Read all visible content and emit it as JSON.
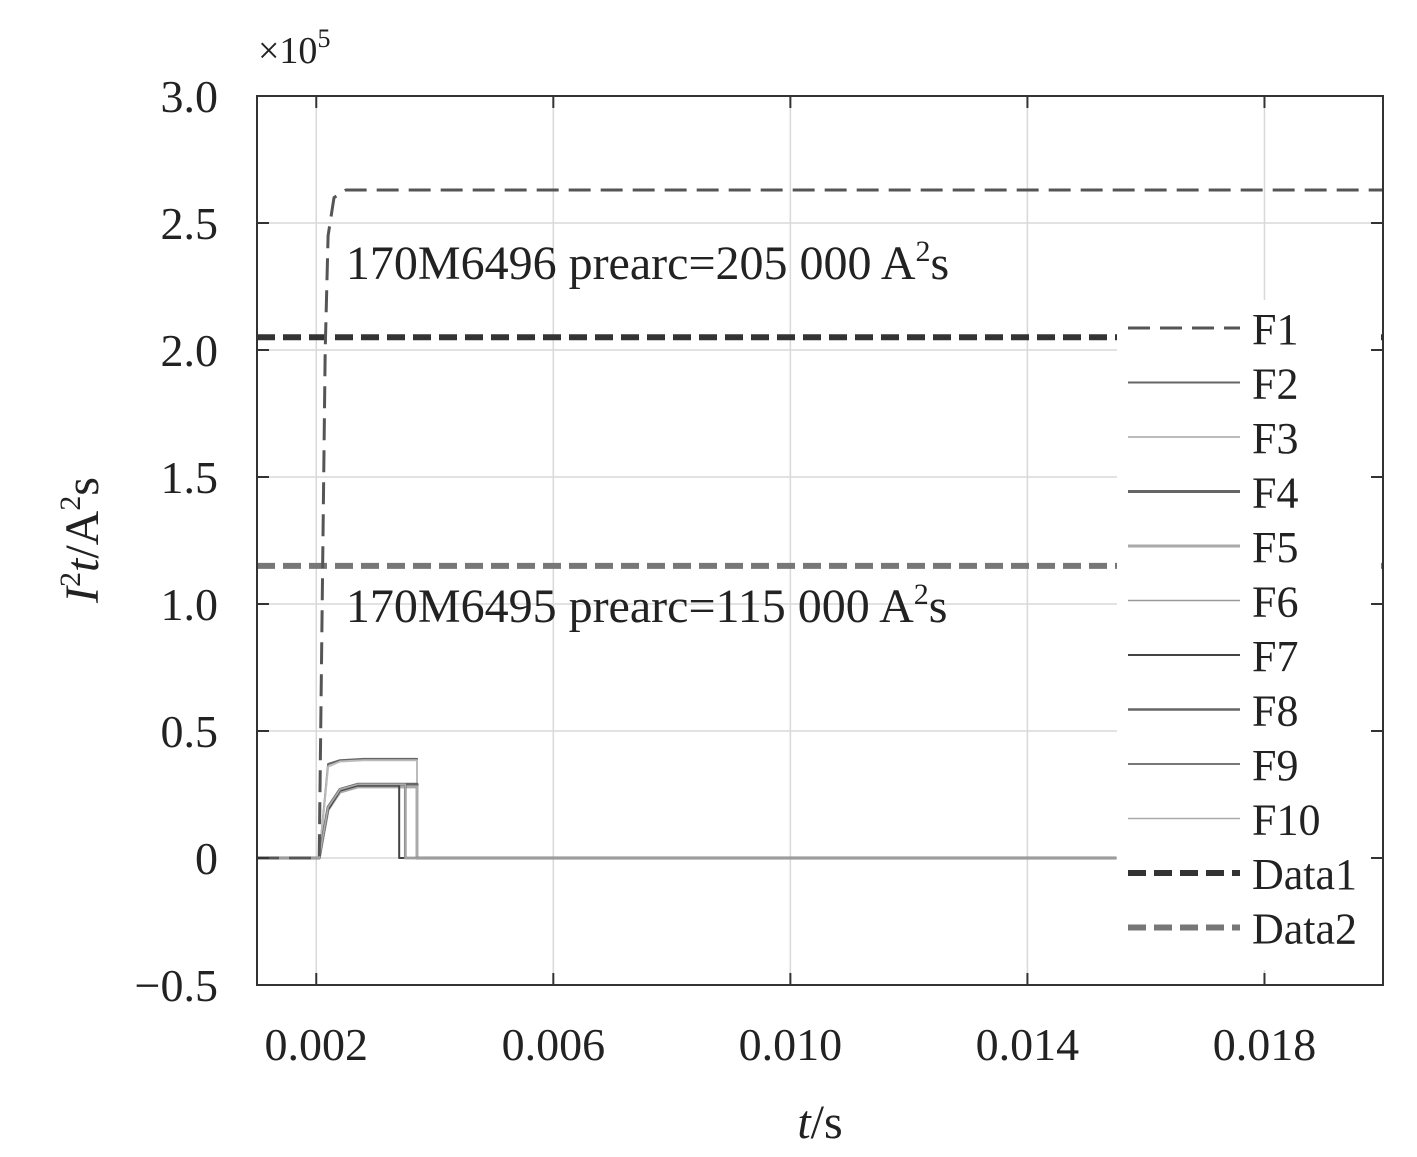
{
  "chart_data": {
    "type": "line",
    "xlabel_italic": "t",
    "xlabel_unit": "/s",
    "ylabel_base": "I",
    "ylabel_sup": "2",
    "ylabel_italic": "t",
    "ylabel_unit": "/A",
    "ylabel_unit_sup": "2",
    "ylabel_unit_tail": "s",
    "exponent_prefix": "×10",
    "exponent_power": "5",
    "xlim": [
      0.001,
      0.02
    ],
    "ylim": [
      -0.5,
      3.0
    ],
    "y_scale_factor": 100000,
    "grid": true,
    "legend_position": "right",
    "x_ticks": [
      0.002,
      0.006,
      0.01,
      0.014,
      0.018
    ],
    "x_tick_labels": [
      "0.002",
      "0.006",
      "0.010",
      "0.014",
      "0.018"
    ],
    "y_ticks": [
      -0.5,
      0,
      0.5,
      1.0,
      1.5,
      2.0,
      2.5,
      3.0
    ],
    "y_tick_labels": [
      "−0.5",
      "0",
      "0.5",
      "1.0",
      "1.5",
      "2.0",
      "2.5",
      "3.0"
    ],
    "annotations": [
      {
        "text_before": "170M6496 prearc=205 000 A",
        "sup": "2",
        "text_after": "s",
        "x": 0.0025,
        "y": 2.28
      },
      {
        "text_before": "170M6495 prearc=115 000 A",
        "sup": "2",
        "text_after": "s",
        "x": 0.0025,
        "y": 0.93
      }
    ],
    "series": [
      {
        "name": "F1",
        "color": "#555555",
        "dash": "dashed",
        "width": 3,
        "x": [
          0.001,
          0.00205,
          0.0021,
          0.00215,
          0.0022,
          0.0023,
          0.0025,
          0.02
        ],
        "y": [
          0,
          0,
          1.0,
          2.0,
          2.45,
          2.6,
          2.63,
          2.63
        ]
      },
      {
        "name": "F2",
        "color": "#666666",
        "dash": "solid",
        "width": 2,
        "x": [
          0.001,
          0.00205,
          0.0022,
          0.0024,
          0.0028,
          0.0037,
          0.0037,
          0.0155
        ],
        "y": [
          0,
          0,
          0.37,
          0.385,
          0.39,
          0.39,
          0,
          0
        ]
      },
      {
        "name": "F3",
        "color": "#bbbbbb",
        "dash": "solid",
        "width": 2,
        "x": [
          0.001,
          0.00205,
          0.0022,
          0.0024,
          0.0028,
          0.0037,
          0.0037,
          0.0155
        ],
        "y": [
          0,
          0,
          0.36,
          0.38,
          0.385,
          0.385,
          0,
          0
        ]
      },
      {
        "name": "F4",
        "color": "#666666",
        "dash": "solid",
        "width": 3,
        "x": [
          0.001,
          0.00205,
          0.0022,
          0.0024,
          0.0027,
          0.0037,
          0.0037,
          0.0155
        ],
        "y": [
          0,
          0,
          0.2,
          0.27,
          0.29,
          0.29,
          0,
          0
        ]
      },
      {
        "name": "F5",
        "color": "#aaaaaa",
        "dash": "solid",
        "width": 3,
        "x": [
          0.001,
          0.00205,
          0.0022,
          0.0024,
          0.0027,
          0.0037,
          0.0037,
          0.0155
        ],
        "y": [
          0,
          0,
          0.19,
          0.26,
          0.28,
          0.28,
          0,
          0
        ]
      },
      {
        "name": "F6",
        "color": "#999999",
        "dash": "solid",
        "width": 1.5,
        "x": [
          0.001,
          0.00205,
          0.0022,
          0.0024,
          0.0027,
          0.0034,
          0.0034,
          0.0155
        ],
        "y": [
          0,
          0,
          0.2,
          0.27,
          0.29,
          0.29,
          0,
          0
        ]
      },
      {
        "name": "F7",
        "color": "#444444",
        "dash": "solid",
        "width": 2,
        "x": [
          0.001,
          0.00205,
          0.0022,
          0.0024,
          0.0027,
          0.0034,
          0.0034,
          0.0155
        ],
        "y": [
          0,
          0,
          0.19,
          0.265,
          0.285,
          0.285,
          0,
          0
        ]
      },
      {
        "name": "F8",
        "color": "#666666",
        "dash": "solid",
        "width": 2.5,
        "x": [
          0.001,
          0.00205,
          0.0022,
          0.0024,
          0.0027,
          0.0035,
          0.0035,
          0.0155
        ],
        "y": [
          0,
          0,
          0.2,
          0.27,
          0.29,
          0.29,
          0,
          0
        ]
      },
      {
        "name": "F9",
        "color": "#777777",
        "dash": "solid",
        "width": 2,
        "x": [
          0.001,
          0.00205,
          0.0022,
          0.0024,
          0.0027,
          0.0035,
          0.0035,
          0.0155
        ],
        "y": [
          0,
          0,
          0.2,
          0.27,
          0.29,
          0.29,
          0,
          0
        ]
      },
      {
        "name": "F10",
        "color": "#aaaaaa",
        "dash": "solid",
        "width": 1.5,
        "x": [
          0.001,
          0.00205,
          0.0022,
          0.0024,
          0.0027,
          0.0035,
          0.0035,
          0.0155
        ],
        "y": [
          0,
          0,
          0.2,
          0.27,
          0.29,
          0.29,
          0,
          0
        ]
      },
      {
        "name": "Data1",
        "color": "#333333",
        "dash": "dashed-thick",
        "width": 6,
        "x": [
          0.001,
          0.02
        ],
        "y": [
          2.05,
          2.05
        ]
      },
      {
        "name": "Data2",
        "color": "#777777",
        "dash": "dashed-thick",
        "width": 6,
        "x": [
          0.001,
          0.02
        ],
        "y": [
          1.15,
          1.15
        ]
      }
    ]
  }
}
